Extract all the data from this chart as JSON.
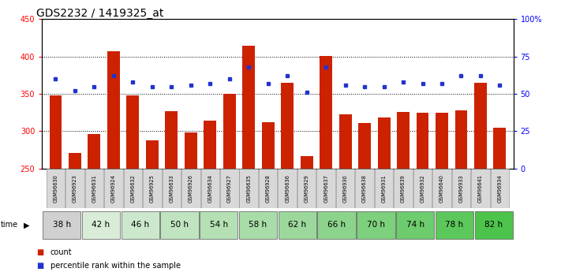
{
  "title": "GDS2232 / 1419325_at",
  "samples": [
    "GSM96630",
    "GSM96923",
    "GSM96631",
    "GSM96924",
    "GSM96632",
    "GSM96925",
    "GSM96633",
    "GSM96926",
    "GSM96634",
    "GSM96927",
    "GSM96635",
    "GSM96928",
    "GSM96636",
    "GSM96929",
    "GSM96637",
    "GSM96930",
    "GSM96638",
    "GSM96931",
    "GSM96639",
    "GSM96932",
    "GSM96640",
    "GSM96933",
    "GSM96641",
    "GSM96934"
  ],
  "counts": [
    348,
    271,
    296,
    407,
    348,
    288,
    327,
    298,
    314,
    350,
    414,
    312,
    365,
    267,
    401,
    323,
    311,
    318,
    326,
    325,
    325,
    328,
    365,
    305
  ],
  "percentiles": [
    60,
    52,
    55,
    62,
    58,
    55,
    55,
    56,
    57,
    60,
    68,
    57,
    62,
    51,
    68,
    56,
    55,
    55,
    58,
    57,
    57,
    62,
    62,
    56
  ],
  "time_labels": [
    "38 h",
    "42 h",
    "46 h",
    "50 h",
    "54 h",
    "58 h",
    "62 h",
    "66 h",
    "70 h",
    "74 h",
    "78 h",
    "82 h"
  ],
  "group_colors": [
    "#d0d0d0",
    "#d8ecd8",
    "#cce8cc",
    "#c0e4c0",
    "#b4e0b4",
    "#a8dca8",
    "#9cd89c",
    "#8cd48c",
    "#7dd07d",
    "#6dcc6d",
    "#5cc85c",
    "#4cc44c"
  ],
  "ylim_left": [
    250,
    450
  ],
  "ylim_right": [
    0,
    100
  ],
  "yticks_left": [
    250,
    300,
    350,
    400,
    450
  ],
  "yticks_right": [
    0,
    25,
    50,
    75,
    100
  ],
  "bar_color": "#cc2200",
  "dot_color": "#2233cc",
  "bg_color": "#ffffff",
  "title_fontsize": 10,
  "tick_fontsize": 7,
  "sample_fontsize": 4.8,
  "time_fontsize": 7.5
}
